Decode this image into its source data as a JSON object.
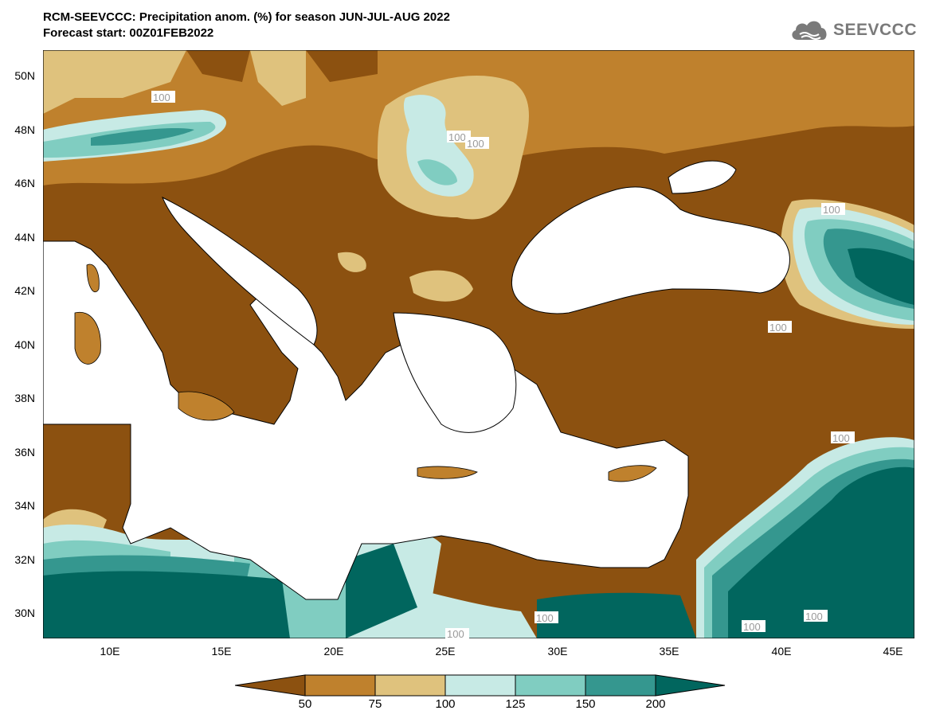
{
  "header": {
    "title": "RCM-SEEVCCC: Precipitation anom. (%) for season JUN-JUL-AUG 2022",
    "subtitle": "Forecast start: 00Z01FEB2022"
  },
  "logo": {
    "icon": "cloud-icon",
    "text": "SEEVCCC"
  },
  "map": {
    "lat_labels": [
      "50N",
      "48N",
      "46N",
      "44N",
      "42N",
      "40N",
      "38N",
      "36N",
      "34N",
      "32N",
      "30N"
    ],
    "lon_labels": [
      "10E",
      "15E",
      "20E",
      "25E",
      "30E",
      "35E",
      "40E",
      "45E"
    ],
    "contour_labels": [
      "100",
      "100",
      "100",
      "100",
      "100",
      "100",
      "100",
      "100",
      "100",
      "100"
    ]
  },
  "colorbar": {
    "ticks": [
      "50",
      "75",
      "100",
      "125",
      "150",
      "200"
    ],
    "colors": [
      "#8c5110",
      "#bf812d",
      "#dfc27d",
      "#c7eae5",
      "#80cdc1",
      "#35978f",
      "#01665e"
    ]
  }
}
